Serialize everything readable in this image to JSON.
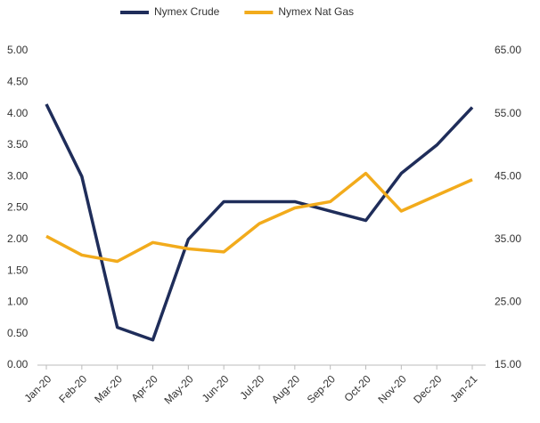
{
  "chart_data": {
    "type": "line",
    "categories": [
      "Jan-20",
      "Feb-20",
      "Mar-20",
      "Apr-20",
      "May-20",
      "Jun-20",
      "Jul-20",
      "Aug-20",
      "Sep-20",
      "Oct-20",
      "Nov-20",
      "Dec-20",
      "Jan-21"
    ],
    "series": [
      {
        "name": "Nymex Crude",
        "color": "#1f2d5a",
        "axis": "y2",
        "values": [
          56.5,
          45,
          21,
          19,
          35,
          41,
          41,
          41,
          39.5,
          38,
          45.5,
          50,
          56
        ]
      },
      {
        "name": "Nymex Nat Gas",
        "color": "#f2ab1c",
        "values": [
          2.05,
          1.75,
          1.65,
          1.95,
          1.85,
          1.8,
          2.25,
          2.5,
          2.6,
          3.05,
          2.45,
          2.7,
          2.95
        ]
      }
    ],
    "ylim": [
      0,
      5
    ],
    "yticks": [
      {
        "value": 0,
        "label": "0.00"
      },
      {
        "value": 0.5,
        "label": "0.50"
      },
      {
        "value": 1,
        "label": "1.00"
      },
      {
        "value": 1.5,
        "label": "1.50"
      },
      {
        "value": 2,
        "label": "2.00"
      },
      {
        "value": 2.5,
        "label": "2.50"
      },
      {
        "value": 3,
        "label": "3.00"
      },
      {
        "value": 3.5,
        "label": "3.50"
      },
      {
        "value": 4,
        "label": "4.00"
      },
      {
        "value": 4.5,
        "label": "4.50"
      },
      {
        "value": 5,
        "label": "5.00"
      }
    ],
    "y2lim": [
      15,
      65
    ],
    "y2ticks": [
      {
        "value": 15,
        "label": "15.00"
      },
      {
        "value": 25,
        "label": "25.00"
      },
      {
        "value": 35,
        "label": "35.00"
      },
      {
        "value": 45,
        "label": "45.00"
      },
      {
        "value": 55,
        "label": "55.00"
      },
      {
        "value": 65,
        "label": "65.00"
      }
    ],
    "legend": "top"
  }
}
